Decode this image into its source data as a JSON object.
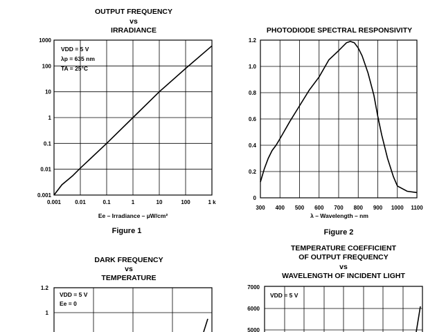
{
  "chart_data": [
    {
      "type": "line",
      "title_lines": [
        "OUTPUT FREQUENCY",
        "vs",
        "IRRADIANCE"
      ],
      "xlabel": "Ee – Irradiance – µW/cm²",
      "xscale": "log",
      "yscale": "log",
      "xlim": [
        0.001,
        1000
      ],
      "ylim": [
        0.001,
        1000
      ],
      "xticks": [
        "0.001",
        "0.01",
        "0.1",
        "1",
        "10",
        "100",
        "1 k"
      ],
      "yticks": [
        "1000",
        "100",
        "10",
        "1",
        "0.1",
        "0.01",
        "0.001"
      ],
      "annotations": [
        "VDD = 5 V",
        "λp = 635 nm",
        "TA = 25°C"
      ],
      "series": [
        {
          "x": [
            0.001,
            0.002,
            0.005,
            0.01,
            0.1,
            1,
            10,
            100,
            1000
          ],
          "y": [
            0.001,
            0.0025,
            0.0055,
            0.011,
            0.1,
            1.0,
            10,
            80,
            600
          ]
        }
      ],
      "figure_label": "Figure 1",
      "grid": true
    },
    {
      "type": "line",
      "title_lines": [
        "PHOTODIODE SPECTRAL RESPONSIVITY"
      ],
      "xlabel": "λ – Wavelength – nm",
      "xlim": [
        300,
        1100
      ],
      "ylim": [
        0,
        1.2
      ],
      "xticks": [
        "300",
        "400",
        "500",
        "600",
        "700",
        "800",
        "900",
        "1000",
        "1100"
      ],
      "yticks": [
        "1.2",
        "1.0",
        "0.8",
        "0.6",
        "0.4",
        "0.2",
        "0"
      ],
      "series": [
        {
          "x": [
            300,
            320,
            340,
            360,
            380,
            400,
            450,
            500,
            550,
            600,
            650,
            700,
            720,
            740,
            760,
            780,
            800,
            820,
            850,
            880,
            900,
            920,
            950,
            980,
            1000,
            1050,
            1100
          ],
          "y": [
            0.12,
            0.22,
            0.3,
            0.36,
            0.4,
            0.45,
            0.58,
            0.7,
            0.82,
            0.92,
            1.05,
            1.12,
            1.15,
            1.18,
            1.19,
            1.18,
            1.14,
            1.08,
            0.95,
            0.78,
            0.62,
            0.48,
            0.3,
            0.16,
            0.09,
            0.05,
            0.04
          ]
        }
      ],
      "figure_label": "Figure 2",
      "grid": true
    },
    {
      "type": "line",
      "title_lines": [
        "DARK FREQUENCY",
        "vs",
        "TEMPERATURE"
      ],
      "yticks": [
        "1.2",
        "1"
      ],
      "annotations": [
        "VDD = 5 V",
        "Ee = 0"
      ],
      "grid": true
    },
    {
      "type": "line",
      "title_lines": [
        "TEMPERATURE COEFFICIENT",
        "OF OUTPUT FREQUENCY",
        "vs",
        "WAVELENGTH OF INCIDENT LIGHT"
      ],
      "yticks": [
        "7000",
        "6000",
        "5000"
      ],
      "annotations": [
        "VDD = 5 V"
      ],
      "grid": true
    }
  ],
  "colors": {
    "ink": "#000000",
    "paper": "#ffffff"
  }
}
